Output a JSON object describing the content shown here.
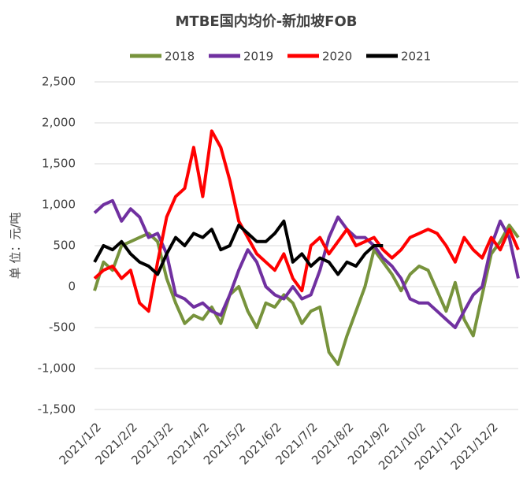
{
  "chart_data": {
    "type": "line",
    "title": "MTBE国内均价-新加坡FOB",
    "y_label": "单 位：元/吨",
    "categories": [
      "2021/1/2",
      null,
      null,
      null,
      "2021/2/2",
      null,
      null,
      null,
      "2021/3/2",
      null,
      null,
      null,
      "2021/4/2",
      null,
      null,
      null,
      "2021/5/2",
      null,
      null,
      null,
      "2021/6/2",
      null,
      null,
      null,
      "2021/7/2",
      null,
      null,
      null,
      "2021/8/2",
      null,
      null,
      null,
      "2021/9/2",
      null,
      null,
      null,
      "2021/10/2",
      null,
      null,
      null,
      "2021/11/2",
      null,
      null,
      null,
      "2021/12/2",
      null,
      null,
      null
    ],
    "series": [
      {
        "name": "2018",
        "color": "#77933c",
        "values": [
          -50,
          300,
          200,
          500,
          550,
          600,
          650,
          550,
          100,
          -200,
          -450,
          -350,
          -400,
          -250,
          -450,
          -100,
          0,
          -300,
          -500,
          -200,
          -250,
          -100,
          -200,
          -450,
          -300,
          -250,
          -800,
          -950,
          -600,
          -300,
          0,
          450,
          300,
          150,
          -50,
          150,
          250,
          200,
          -50,
          -300,
          50,
          -400,
          -600,
          -100,
          400,
          550,
          750,
          600
        ]
      },
      {
        "name": "2019",
        "color": "#7030a0",
        "values": [
          900,
          1000,
          1050,
          800,
          950,
          850,
          600,
          650,
          400,
          -100,
          -150,
          -250,
          -200,
          -300,
          -350,
          -100,
          200,
          450,
          300,
          0,
          -100,
          -150,
          0,
          -150,
          -100,
          200,
          600,
          850,
          700,
          600,
          600,
          500,
          350,
          250,
          100,
          -150,
          -200,
          -200,
          -300,
          -400,
          -500,
          -300,
          -100,
          0,
          500,
          800,
          600,
          100
        ]
      },
      {
        "name": "2020",
        "color": "#ff0000",
        "values": [
          100,
          200,
          250,
          100,
          200,
          -200,
          -300,
          300,
          850,
          1100,
          1200,
          1700,
          1100,
          1900,
          1700,
          1300,
          800,
          600,
          400,
          300,
          200,
          400,
          100,
          -50,
          500,
          600,
          400,
          550,
          700,
          500,
          550,
          600,
          450,
          350,
          450,
          600,
          650,
          700,
          650,
          500,
          300,
          600,
          450,
          350,
          600,
          450,
          700,
          450
        ]
      },
      {
        "name": "2021",
        "color": "#000000",
        "values": [
          300,
          500,
          450,
          550,
          400,
          300,
          250,
          150,
          400,
          600,
          500,
          650,
          600,
          700,
          450,
          500,
          750,
          650,
          550,
          550,
          650,
          800,
          300,
          400,
          250,
          350,
          300,
          150,
          300,
          250,
          400,
          500,
          500,
          null,
          null,
          null,
          null,
          null,
          null,
          null,
          null,
          null,
          null,
          null,
          null,
          null,
          null,
          null
        ]
      }
    ],
    "ylim": [
      -1500,
      2500
    ],
    "yticks": [
      {
        "value": -1500,
        "label": "-1,500"
      },
      {
        "value": -1000,
        "label": "-1,000"
      },
      {
        "value": -500,
        "label": "-500"
      },
      0,
      500,
      {
        "value": 1000,
        "label": "1,000"
      },
      {
        "value": 1500,
        "label": "1,500"
      },
      {
        "value": 2000,
        "label": "2,000"
      },
      {
        "value": 2500,
        "label": "2,500"
      }
    ],
    "grid": true,
    "legend": "top"
  }
}
